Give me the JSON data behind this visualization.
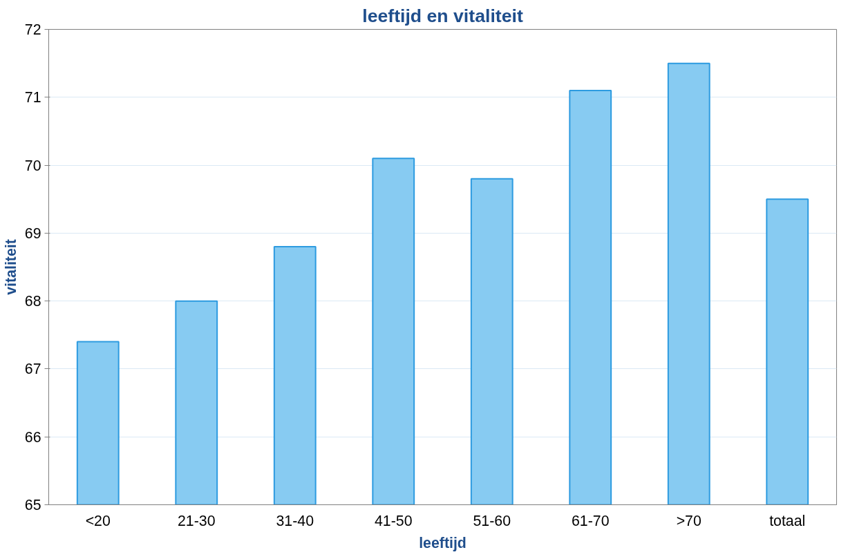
{
  "chart_data": {
    "type": "bar",
    "title": "leeftijd en vitaliteit",
    "xlabel": "leeftijd",
    "ylabel": "vitaliteit",
    "categories": [
      "<20",
      "21-30",
      "31-40",
      "41-50",
      "51-60",
      "61-70",
      ">70",
      "totaal"
    ],
    "values": [
      67.4,
      68.0,
      68.8,
      70.1,
      69.8,
      71.1,
      71.5,
      69.5
    ],
    "color": "#87cbf2",
    "ylim": [
      65,
      72
    ],
    "yticks": [
      65,
      66,
      67,
      68,
      69,
      70,
      71,
      72
    ],
    "grid": "y"
  }
}
